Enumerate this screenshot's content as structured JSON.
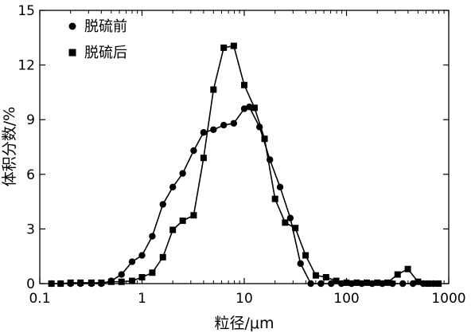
{
  "chart_data": {
    "type": "line",
    "title": "",
    "xlabel": "粒径/μm",
    "ylabel": "体积分数/%",
    "xscale": "log",
    "xlim": [
      0.1,
      1000
    ],
    "ylim": [
      0,
      15
    ],
    "xticks": [
      0.1,
      1,
      10,
      100,
      1000
    ],
    "xtick_labels": [
      "0.1",
      "1",
      "10",
      "100",
      "1000"
    ],
    "yticks": [
      0,
      3,
      6,
      9,
      12,
      15
    ],
    "ytick_labels": [
      "0",
      "3",
      "6",
      "9",
      "12",
      "15"
    ],
    "grid": false,
    "legend_position": "top-left",
    "series": [
      {
        "name": "脱硫前",
        "marker": "circle",
        "color": "#000000",
        "points": [
          [
            0.13,
            0.0
          ],
          [
            0.16,
            0.0
          ],
          [
            0.2,
            0.0
          ],
          [
            0.25,
            0.0
          ],
          [
            0.32,
            0.0
          ],
          [
            0.4,
            0.0
          ],
          [
            0.5,
            0.15
          ],
          [
            0.63,
            0.5
          ],
          [
            0.8,
            1.2
          ],
          [
            1.0,
            1.55
          ],
          [
            1.26,
            2.6
          ],
          [
            1.6,
            4.35
          ],
          [
            2.0,
            5.3
          ],
          [
            2.5,
            6.05
          ],
          [
            3.2,
            7.3
          ],
          [
            4.0,
            8.3
          ],
          [
            5.0,
            8.45
          ],
          [
            6.3,
            8.7
          ],
          [
            7.9,
            8.8
          ],
          [
            10.0,
            9.6
          ],
          [
            11.2,
            9.7
          ],
          [
            14.1,
            8.6
          ],
          [
            17.8,
            6.8
          ],
          [
            22.4,
            5.3
          ],
          [
            28.2,
            3.6
          ],
          [
            35.5,
            1.1
          ],
          [
            44.7,
            0.0
          ],
          [
            56.2,
            0.0
          ],
          [
            70.8,
            0.0
          ],
          [
            89.1,
            0.0
          ],
          [
            112,
            0.0
          ],
          [
            141,
            0.0
          ],
          [
            178,
            0.0
          ],
          [
            224,
            0.0
          ],
          [
            282,
            0.0
          ],
          [
            355,
            0.0
          ],
          [
            447,
            0.0
          ],
          [
            562,
            0.0
          ],
          [
            708,
            0.0
          ]
        ]
      },
      {
        "name": "脱硫后",
        "marker": "square",
        "color": "#000000",
        "points": [
          [
            0.13,
            0.0
          ],
          [
            0.16,
            0.0
          ],
          [
            0.2,
            0.05
          ],
          [
            0.25,
            0.05
          ],
          [
            0.32,
            0.05
          ],
          [
            0.4,
            0.05
          ],
          [
            0.5,
            0.1
          ],
          [
            0.63,
            0.1
          ],
          [
            0.8,
            0.15
          ],
          [
            1.0,
            0.35
          ],
          [
            1.26,
            0.6
          ],
          [
            1.6,
            1.45
          ],
          [
            2.0,
            2.95
          ],
          [
            2.5,
            3.45
          ],
          [
            3.2,
            3.75
          ],
          [
            4.0,
            6.9
          ],
          [
            5.0,
            10.65
          ],
          [
            6.3,
            12.95
          ],
          [
            7.9,
            13.05
          ],
          [
            10.0,
            10.9
          ],
          [
            12.6,
            9.65
          ],
          [
            15.8,
            7.95
          ],
          [
            20.0,
            4.65
          ],
          [
            25.1,
            3.35
          ],
          [
            31.6,
            3.05
          ],
          [
            39.8,
            1.55
          ],
          [
            50.1,
            0.45
          ],
          [
            63.1,
            0.35
          ],
          [
            79.4,
            0.15
          ],
          [
            100,
            0.05
          ],
          [
            126,
            0.05
          ],
          [
            158,
            0.05
          ],
          [
            200,
            0.05
          ],
          [
            251,
            0.05
          ],
          [
            316,
            0.5
          ],
          [
            398,
            0.8
          ],
          [
            501,
            0.1
          ],
          [
            631,
            0.0
          ],
          [
            794,
            0.0
          ]
        ]
      }
    ]
  }
}
